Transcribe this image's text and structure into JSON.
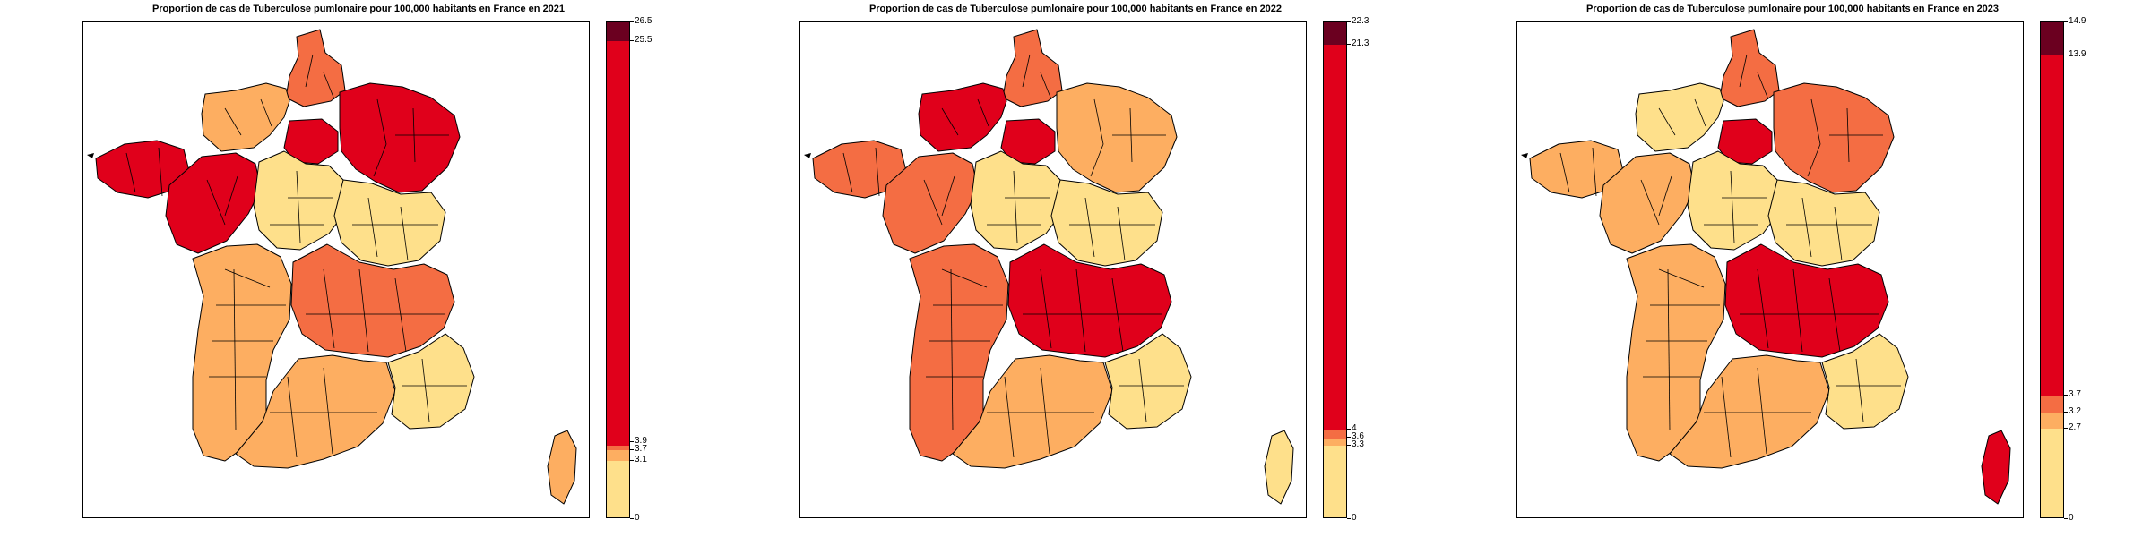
{
  "palette": {
    "class1": "#fee08b",
    "class2": "#fdae61",
    "class3": "#f46d43",
    "class4": "#e0001b",
    "class5": "#6b0020"
  },
  "maps": [
    {
      "title": "Proportion de cas de Tuberculose pumlonaire pour 100,000 habitants en France en 2021",
      "legend": {
        "min": 0,
        "max": 26.5,
        "breaks": [
          0,
          3.1,
          3.7,
          3.9,
          25.5,
          26.5
        ],
        "labels": [
          "0",
          "3.1",
          "3.7",
          "3.9",
          "25.5",
          "26.5"
        ]
      },
      "regions": {
        "hauts_de_france": 3,
        "normandie": 2,
        "ile_de_france": 4,
        "grand_est": 4,
        "bretagne": 4,
        "pays_de_la_loire": 4,
        "centre_val_de_loire": 1,
        "bourgogne_franche_comte": 1,
        "nouvelle_aquitaine": 2,
        "auvergne_rhone_alpes": 3,
        "occitanie": 2,
        "paca": 1,
        "corse": 2
      }
    },
    {
      "title": "Proportion de cas de Tuberculose pumlonaire pour 100,000 habitants en France en 2022",
      "legend": {
        "min": 0,
        "max": 22.3,
        "breaks": [
          0,
          3.3,
          3.6,
          4,
          21.3,
          22.3
        ],
        "labels": [
          "0",
          "3.3",
          "3.6",
          "4",
          "21.3",
          "22.3"
        ]
      },
      "regions": {
        "hauts_de_france": 3,
        "normandie": 4,
        "ile_de_france": 4,
        "grand_est": 2,
        "bretagne": 3,
        "pays_de_la_loire": 3,
        "centre_val_de_loire": 1,
        "bourgogne_franche_comte": 1,
        "nouvelle_aquitaine": 3,
        "auvergne_rhone_alpes": 4,
        "occitanie": 2,
        "paca": 1,
        "corse": 1
      }
    },
    {
      "title": "Proportion de cas de Tuberculose pumlonaire pour 100,000 habitants en France en 2023",
      "legend": {
        "min": 0,
        "max": 14.9,
        "breaks": [
          0,
          2.7,
          3.2,
          3.7,
          13.9,
          14.9
        ],
        "labels": [
          "0",
          "2.7",
          "3.2",
          "3.7",
          "13.9",
          "14.9"
        ]
      },
      "regions": {
        "hauts_de_france": 3,
        "normandie": 1,
        "ile_de_france": 4,
        "grand_est": 3,
        "bretagne": 2,
        "pays_de_la_loire": 2,
        "centre_val_de_loire": 1,
        "bourgogne_franche_comte": 1,
        "nouvelle_aquitaine": 2,
        "auvergne_rhone_alpes": 4,
        "occitanie": 2,
        "paca": 1,
        "corse": 4
      }
    }
  ]
}
